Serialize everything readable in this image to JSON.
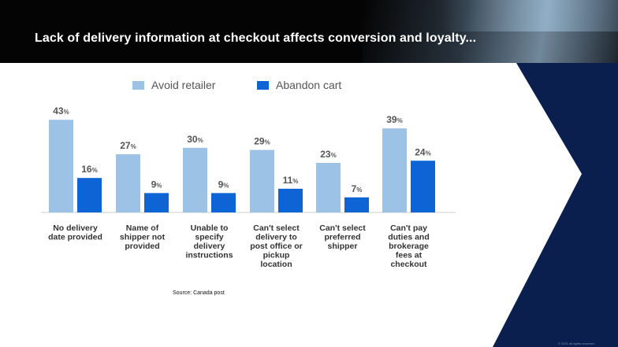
{
  "slide": {
    "title": "Lack of delivery information at checkout affects conversion and loyalty...",
    "source": "Source: Canada post",
    "footer_note": "© 2021 all rights reserved"
  },
  "colors": {
    "avoid_retailer": "#9cc3e6",
    "abandon_cart": "#0e64d4",
    "header_bg": "#040404",
    "navy": "#0a1f4d"
  },
  "chart_data": {
    "type": "bar",
    "categories": [
      [
        "No delivery",
        "date provided"
      ],
      [
        "Name of",
        "shipper not",
        "provided"
      ],
      [
        "Unable to",
        "specify",
        "delivery",
        "instructions"
      ],
      [
        "Can't select",
        "delivery to",
        "post office or",
        "pickup",
        "location"
      ],
      [
        "Can't select",
        "preferred",
        "shipper"
      ],
      [
        "Can't pay",
        "duties and",
        "brokerage",
        "fees at",
        "checkout"
      ]
    ],
    "series": [
      {
        "name": "Avoid retailer",
        "values": [
          43,
          27,
          30,
          29,
          23,
          39
        ]
      },
      {
        "name": "Abandon cart",
        "values": [
          16,
          9,
          9,
          11,
          7,
          24
        ]
      }
    ],
    "value_suffix": "%",
    "ylim": [
      0,
      46
    ],
    "legend": "top",
    "grid": false
  }
}
